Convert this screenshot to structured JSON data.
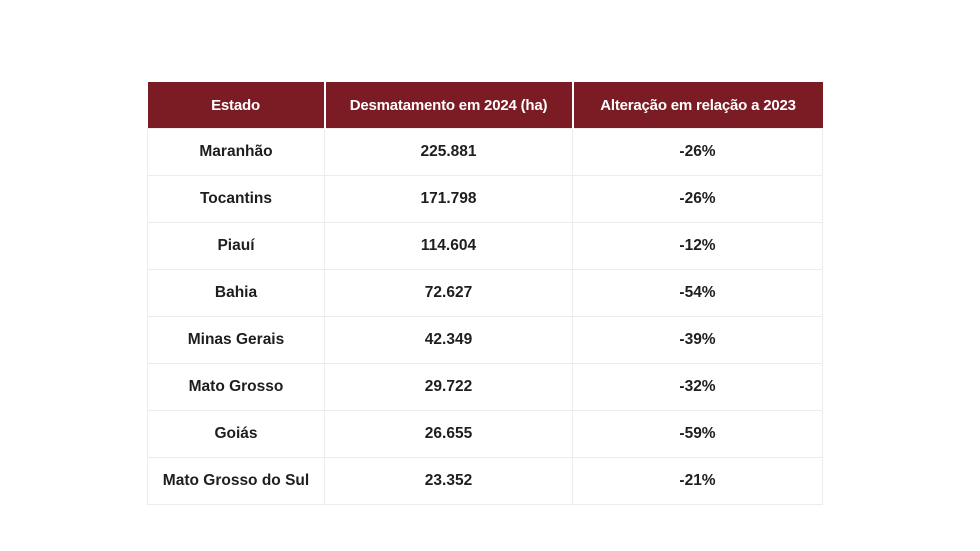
{
  "table": {
    "headers": [
      "Estado",
      "Desmatamento em 2024 (ha)",
      "Alteração em relação a 2023"
    ],
    "rows": [
      [
        "Maranhão",
        "225.881",
        "-26%"
      ],
      [
        "Tocantins",
        "171.798",
        "-26%"
      ],
      [
        "Piauí",
        "114.604",
        "-12%"
      ],
      [
        "Bahia",
        "72.627",
        "-54%"
      ],
      [
        "Minas Gerais",
        "42.349",
        "-39%"
      ],
      [
        "Mato Grosso",
        "29.722",
        "-32%"
      ],
      [
        "Goiás",
        "26.655",
        "-59%"
      ],
      [
        "Mato Grosso do Sul",
        "23.352",
        "-21%"
      ]
    ]
  },
  "colors": {
    "header_background": "#7b1c25",
    "header_text": "#ffffff",
    "cell_text": "#1e1e1e",
    "grid_line": "#ececec"
  }
}
